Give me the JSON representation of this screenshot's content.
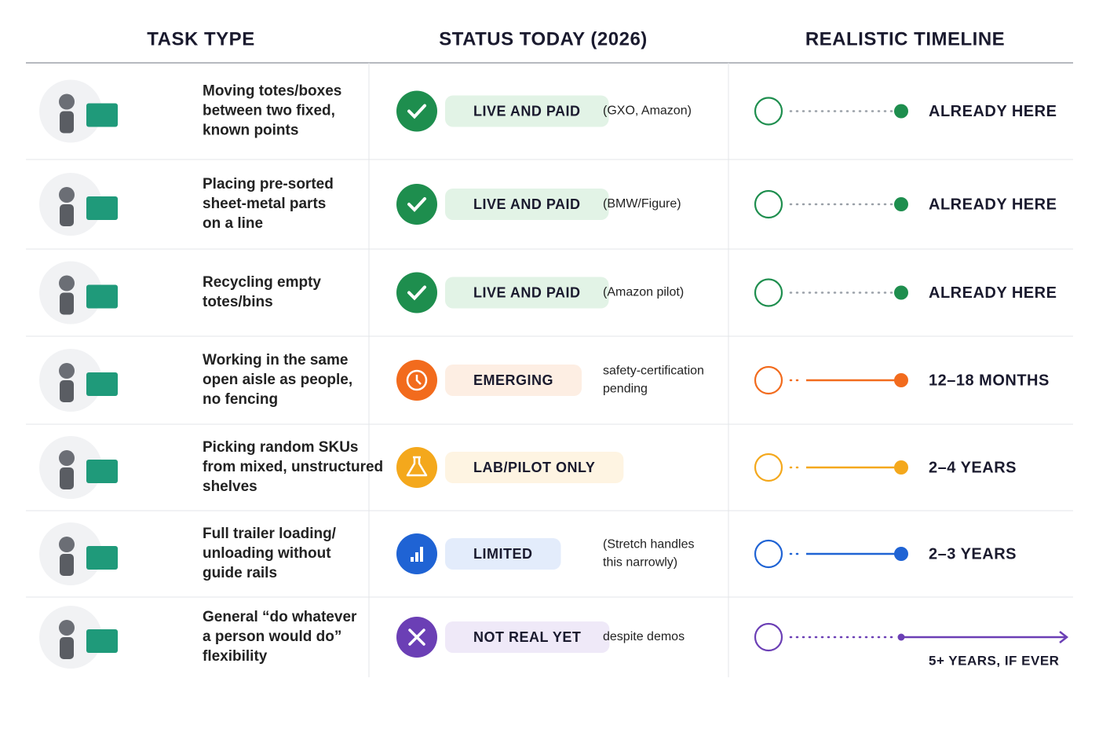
{
  "header": {
    "columns": [
      "TASK TYPE",
      "STATUS TODAY (2026)",
      "REALISTIC TIMELINE"
    ]
  },
  "rows": [
    {
      "task": [
        "Moving totes/boxes",
        "between two fixed,",
        "known points"
      ],
      "status": "LIVE AND PAID",
      "note": [
        "(GXO, Amazon)"
      ],
      "timeline": "ALREADY HERE",
      "color": "#1e8e4e",
      "pill_color": "#e2f3e6"
    },
    {
      "task": [
        "Placing pre-sorted",
        "sheet-metal parts",
        "on a line"
      ],
      "status": "LIVE AND PAID",
      "note": [
        "(BMW/Figure)"
      ],
      "timeline": "ALREADY HERE",
      "color": "#1e8e4e",
      "pill_color": "#e2f3e6"
    },
    {
      "task": [
        "Recycling empty",
        "totes/bins"
      ],
      "status": "LIVE AND PAID",
      "note": [
        "(Amazon pilot)"
      ],
      "timeline": "ALREADY HERE",
      "color": "#1e8e4e",
      "pill_color": "#e2f3e6"
    },
    {
      "task": [
        "Working in the same",
        "open aisle as people,",
        "no fencing"
      ],
      "status": "EMERGING",
      "note": [
        "safety-certification",
        "pending"
      ],
      "timeline": "12–18 MONTHS",
      "color": "#f26b1d",
      "pill_color": "#fdeee3"
    },
    {
      "task": [
        "Picking random SKUs",
        "from mixed, unstructured",
        "shelves"
      ],
      "status": "LAB/PILOT ONLY",
      "timeline": "2–4 YEARS",
      "color": "#f4a81c",
      "pill_color": "#fef4e2"
    },
    {
      "task": [
        "Full trailer loading/",
        "unloading without",
        "guide rails"
      ],
      "status": "LIMITED",
      "note": [
        "(Stretch handles",
        "this narrowly)"
      ],
      "timeline": "2–3 YEARS",
      "color": "#1f63d4",
      "pill_color": "#e3ecfb"
    },
    {
      "task": [
        "General “do whatever",
        "a person would do”",
        "flexibility"
      ],
      "status": "NOT REAL YET",
      "note": [
        "despite demos"
      ],
      "timeline": "5+ YEARS, IF EVER",
      "color": "#6b3fb5",
      "pill_color": "#efe9f8"
    }
  ]
}
